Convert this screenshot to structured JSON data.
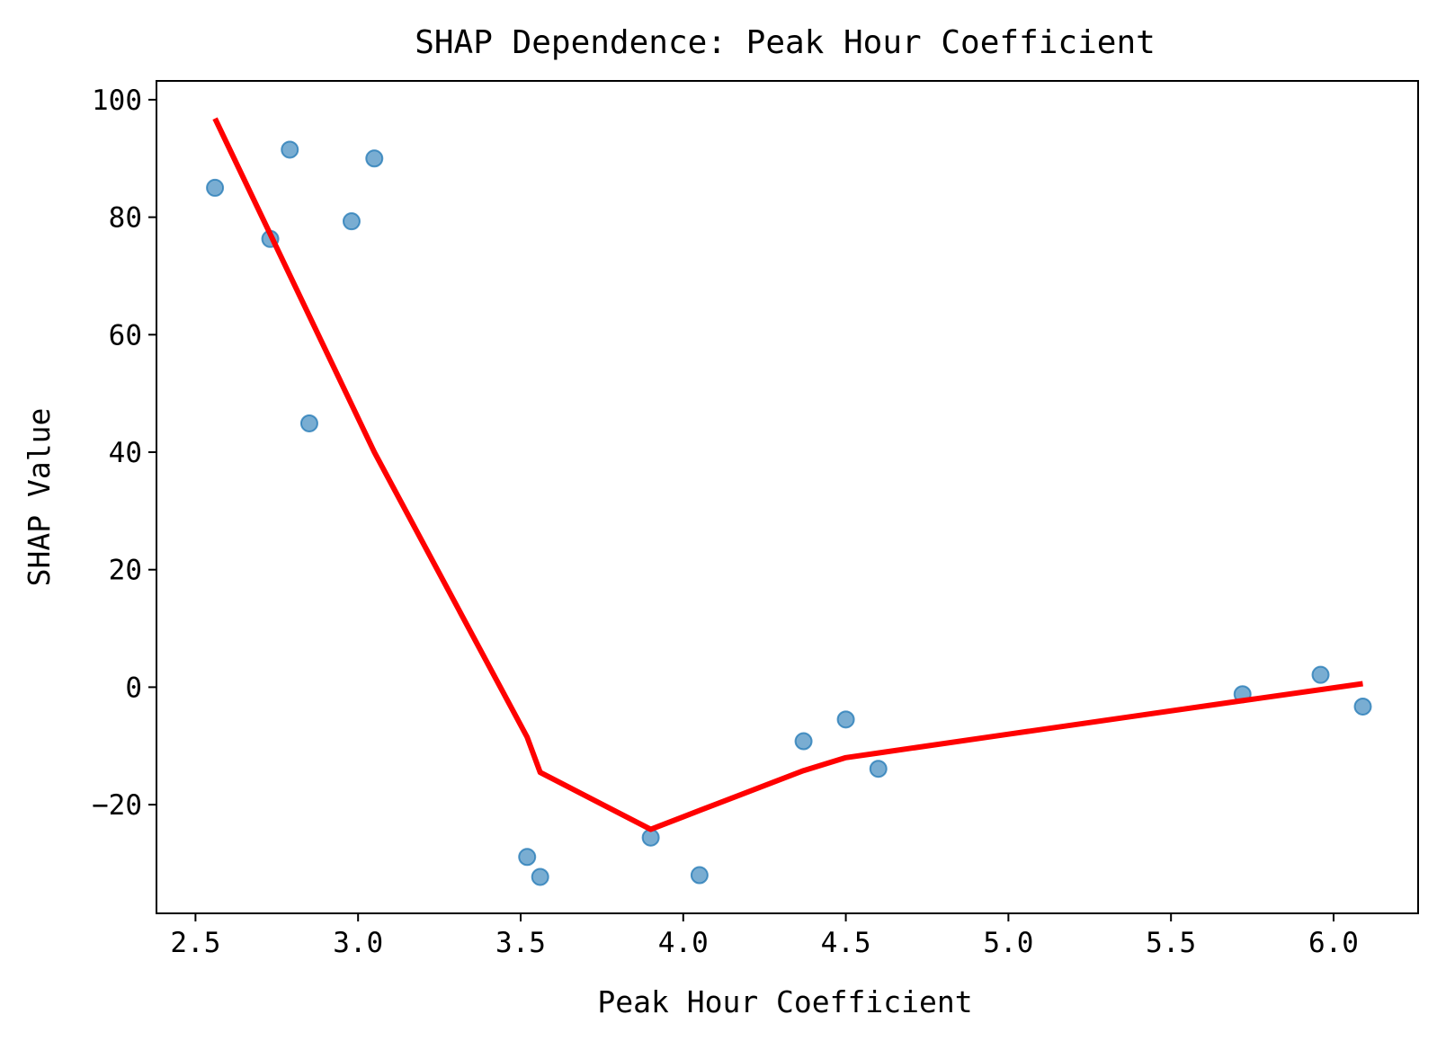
{
  "chart_data": {
    "type": "scatter",
    "title": "SHAP Dependence: Peak Hour Coefficient",
    "xlabel": "Peak Hour Coefficient",
    "ylabel": "SHAP Value",
    "xlim": [
      2.38,
      6.26
    ],
    "ylim": [
      -38.5,
      103.2
    ],
    "xticks": [
      2.5,
      3.0,
      3.5,
      4.0,
      4.5,
      5.0,
      5.5,
      6.0
    ],
    "xtick_labels": [
      "2.5",
      "3.0",
      "3.5",
      "4.0",
      "4.5",
      "5.0",
      "5.5",
      "6.0"
    ],
    "yticks": [
      -20,
      0,
      20,
      40,
      60,
      80,
      100
    ],
    "ytick_labels": [
      "−20",
      "0",
      "20",
      "40",
      "60",
      "80",
      "100"
    ],
    "grid": false,
    "series": [
      {
        "type": "scatter",
        "color": "#1f77b4",
        "opacity": 0.6,
        "points": [
          {
            "x": 2.56,
            "y": 85.0
          },
          {
            "x": 2.73,
            "y": 76.3
          },
          {
            "x": 2.79,
            "y": 91.5
          },
          {
            "x": 2.85,
            "y": 44.9
          },
          {
            "x": 2.98,
            "y": 79.3
          },
          {
            "x": 3.05,
            "y": 90.0
          },
          {
            "x": 3.52,
            "y": -28.9
          },
          {
            "x": 3.56,
            "y": -32.3
          },
          {
            "x": 3.9,
            "y": -25.6
          },
          {
            "x": 4.05,
            "y": -32.0
          },
          {
            "x": 4.37,
            "y": -9.2
          },
          {
            "x": 4.5,
            "y": -5.5
          },
          {
            "x": 4.6,
            "y": -13.9
          },
          {
            "x": 5.72,
            "y": -1.2
          },
          {
            "x": 5.96,
            "y": 2.1
          },
          {
            "x": 6.09,
            "y": -3.3
          }
        ]
      },
      {
        "type": "line",
        "color": "#ff0000",
        "points": [
          {
            "x": 2.56,
            "y": 96.8
          },
          {
            "x": 3.05,
            "y": 40.0
          },
          {
            "x": 3.52,
            "y": -8.5
          },
          {
            "x": 3.56,
            "y": -14.5
          },
          {
            "x": 3.9,
            "y": -24.2
          },
          {
            "x": 4.05,
            "y": -21.0
          },
          {
            "x": 4.37,
            "y": -14.2
          },
          {
            "x": 4.5,
            "y": -12.0
          },
          {
            "x": 4.6,
            "y": -11.2
          },
          {
            "x": 5.0,
            "y": -8.0
          },
          {
            "x": 5.72,
            "y": -2.3
          },
          {
            "x": 6.09,
            "y": 0.6
          }
        ]
      }
    ]
  }
}
